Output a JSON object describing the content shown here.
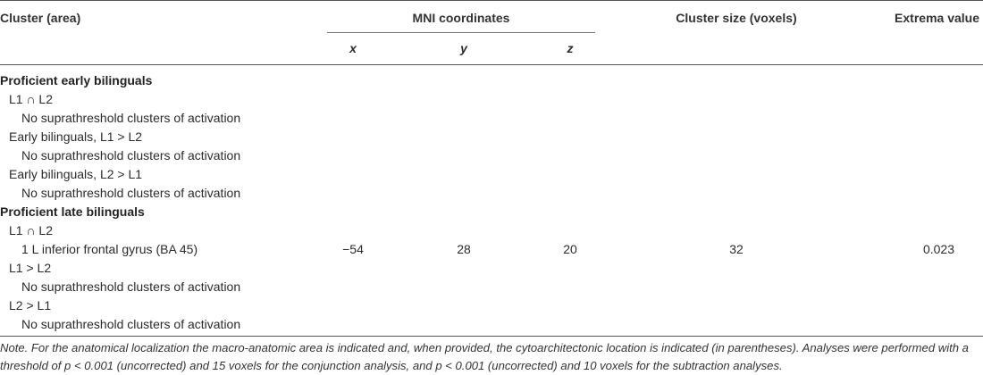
{
  "table": {
    "headers": {
      "cluster": "Cluster (area)",
      "mni": "MNI coordinates",
      "x": "x",
      "y": "y",
      "z": "z",
      "size": "Cluster size (voxels)",
      "extrema": "Extrema value"
    },
    "rows": [
      {
        "label": "Proficient early bilinguals"
      },
      {
        "label": "L1 ∩ L2"
      },
      {
        "label": "No suprathreshold clusters of activation"
      },
      {
        "label": "Early bilinguals, L1 > L2"
      },
      {
        "label": "No suprathreshold clusters of activation"
      },
      {
        "label": "Early bilinguals, L2 > L1"
      },
      {
        "label": "No suprathreshold clusters of activation"
      },
      {
        "label": "Proficient late bilinguals"
      },
      {
        "label": "L1 ∩ L2"
      },
      {
        "label": "1 L inferior frontal gyrus (BA 45)",
        "x": "−54",
        "y": "28",
        "z": "20",
        "size": "32",
        "extrema": "0.023"
      },
      {
        "label": "L1 > L2"
      },
      {
        "label": "No suprathreshold clusters of activation"
      },
      {
        "label": "L2 > L1"
      },
      {
        "label": "No suprathreshold clusters of activation"
      }
    ]
  },
  "note": "Note. For the anatomical localization the macro-anatomic area is indicated and, when provided, the cytoarchitectonic location is indicated (in parentheses). Analyses were performed with a threshold of p < 0.001 (uncorrected) and 15 voxels for the conjunction analysis, and p < 0.001 (uncorrected) and 10 voxels for the subtraction analyses."
}
